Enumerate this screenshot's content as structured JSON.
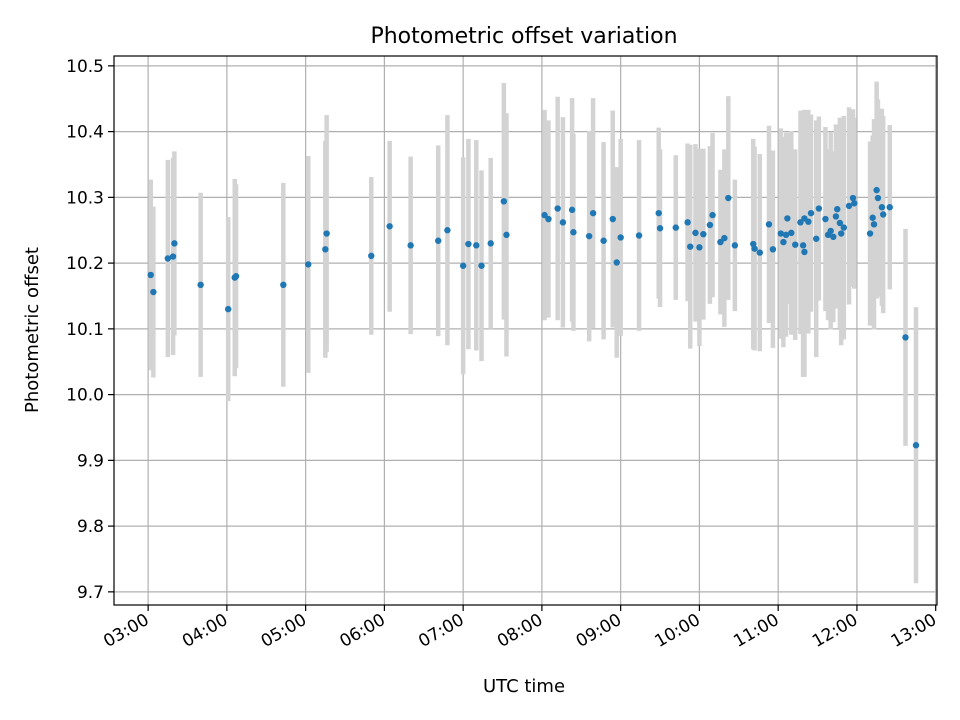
{
  "chart_data": {
    "type": "scatter",
    "title": "Photometric offset variation",
    "xlabel": "UTC time",
    "ylabel": "Photometric offset",
    "x_ticks": [
      "03:00",
      "04:00",
      "05:00",
      "06:00",
      "07:00",
      "08:00",
      "09:00",
      "10:00",
      "11:00",
      "12:00",
      "13:00"
    ],
    "y_ticks": [
      "9.7",
      "9.8",
      "9.9",
      "10.0",
      "10.1",
      "10.2",
      "10.3",
      "10.4",
      "10.5"
    ],
    "xlim": [
      "02:34",
      "13:01"
    ],
    "ylim": [
      9.68,
      10.515
    ],
    "grid": true,
    "colors": {
      "point": "#1f77b4",
      "errorbar": "#d3d3d3",
      "grid": "#b0b0b0"
    },
    "points": [
      [
        "03:02",
        10.182,
        0.145
      ],
      [
        "03:04",
        10.156,
        0.13
      ],
      [
        "03:15",
        10.207,
        0.15
      ],
      [
        "03:19",
        10.21,
        0.15
      ],
      [
        "03:20",
        10.23,
        0.14
      ],
      [
        "03:40",
        10.167,
        0.14
      ],
      [
        "04:01",
        10.13,
        0.14
      ],
      [
        "04:06",
        10.178,
        0.15
      ],
      [
        "04:07",
        10.18,
        0.14
      ],
      [
        "04:43",
        10.167,
        0.155
      ],
      [
        "05:02",
        10.198,
        0.165
      ],
      [
        "05:15",
        10.221,
        0.165
      ],
      [
        "05:16",
        10.245,
        0.18
      ],
      [
        "05:50",
        10.211,
        0.12
      ],
      [
        "06:04",
        10.256,
        0.13
      ],
      [
        "06:20",
        10.227,
        0.135
      ],
      [
        "06:41",
        10.234,
        0.145
      ],
      [
        "06:48",
        10.25,
        0.175
      ],
      [
        "07:00",
        10.196,
        0.165
      ],
      [
        "07:04",
        10.229,
        0.16
      ],
      [
        "07:10",
        10.227,
        0.16
      ],
      [
        "07:14",
        10.196,
        0.145
      ],
      [
        "07:21",
        10.23,
        0.13
      ],
      [
        "07:31",
        10.294,
        0.18
      ],
      [
        "07:33",
        10.243,
        0.185
      ],
      [
        "08:02",
        10.273,
        0.16
      ],
      [
        "08:05",
        10.267,
        0.15
      ],
      [
        "08:12",
        10.283,
        0.17
      ],
      [
        "08:16",
        10.262,
        0.16
      ],
      [
        "08:23",
        10.281,
        0.17
      ],
      [
        "08:24",
        10.247,
        0.15
      ],
      [
        "08:36",
        10.241,
        0.16
      ],
      [
        "08:39",
        10.276,
        0.175
      ],
      [
        "08:47",
        10.234,
        0.15
      ],
      [
        "08:54",
        10.267,
        0.165
      ],
      [
        "08:57",
        10.201,
        0.145
      ],
      [
        "09:00",
        10.239,
        0.15
      ],
      [
        "09:14",
        10.242,
        0.145
      ],
      [
        "09:29",
        10.276,
        0.13
      ],
      [
        "09:30",
        10.253,
        0.12
      ],
      [
        "09:42",
        10.254,
        0.11
      ],
      [
        "09:51",
        10.262,
        0.12
      ],
      [
        "09:53",
        10.225,
        0.155
      ],
      [
        "09:57",
        10.246,
        0.135
      ],
      [
        "10:00",
        10.224,
        0.15
      ],
      [
        "10:03",
        10.244,
        0.13
      ],
      [
        "10:08",
        10.258,
        0.12
      ],
      [
        "10:10",
        10.273,
        0.125
      ],
      [
        "10:16",
        10.232,
        0.11
      ],
      [
        "10:19",
        10.238,
        0.135
      ],
      [
        "10:22",
        10.299,
        0.155
      ],
      [
        "10:27",
        10.227,
        0.1
      ],
      [
        "10:41",
        10.229,
        0.16
      ],
      [
        "10:42",
        10.222,
        0.155
      ],
      [
        "10:46",
        10.216,
        0.15
      ],
      [
        "10:53",
        10.259,
        0.15
      ],
      [
        "10:56",
        10.221,
        0.15
      ],
      [
        "11:02",
        10.245,
        0.16
      ],
      [
        "11:04",
        10.232,
        0.16
      ],
      [
        "11:06",
        10.243,
        0.155
      ],
      [
        "11:07",
        10.268,
        0.13
      ],
      [
        "11:10",
        10.246,
        0.155
      ],
      [
        "11:13",
        10.228,
        0.145
      ],
      [
        "11:17",
        10.262,
        0.17
      ],
      [
        "11:19",
        10.227,
        0.2
      ],
      [
        "11:20",
        10.268,
        0.165
      ],
      [
        "11:20",
        10.217,
        0.19
      ],
      [
        "11:23",
        10.263,
        0.17
      ],
      [
        "11:25",
        10.276,
        0.15
      ],
      [
        "11:29",
        10.237,
        0.18
      ],
      [
        "11:31",
        10.283,
        0.14
      ],
      [
        "11:36",
        10.267,
        0.14
      ],
      [
        "11:38",
        10.243,
        0.13
      ],
      [
        "11:40",
        10.249,
        0.15
      ],
      [
        "11:42",
        10.24,
        0.13
      ],
      [
        "11:44",
        10.271,
        0.14
      ],
      [
        "11:45",
        10.282,
        0.12
      ],
      [
        "11:47",
        10.261,
        0.16
      ],
      [
        "11:48",
        10.245,
        0.17
      ],
      [
        "11:50",
        10.254,
        0.17
      ],
      [
        "11:54",
        10.287,
        0.15
      ],
      [
        "11:57",
        10.299,
        0.135
      ],
      [
        "11:58",
        10.291,
        0.13
      ],
      [
        "12:10",
        10.245,
        0.14
      ],
      [
        "12:12",
        10.269,
        0.125
      ],
      [
        "12:13",
        10.259,
        0.16
      ],
      [
        "12:15",
        10.311,
        0.165
      ],
      [
        "12:16",
        10.299,
        0.15
      ],
      [
        "12:19",
        10.285,
        0.15
      ],
      [
        "12:20",
        10.274,
        0.15
      ],
      [
        "12:25",
        10.285,
        0.125
      ],
      [
        "12:37",
        10.087,
        0.165
      ],
      [
        "12:45",
        9.923,
        0.21
      ]
    ]
  }
}
